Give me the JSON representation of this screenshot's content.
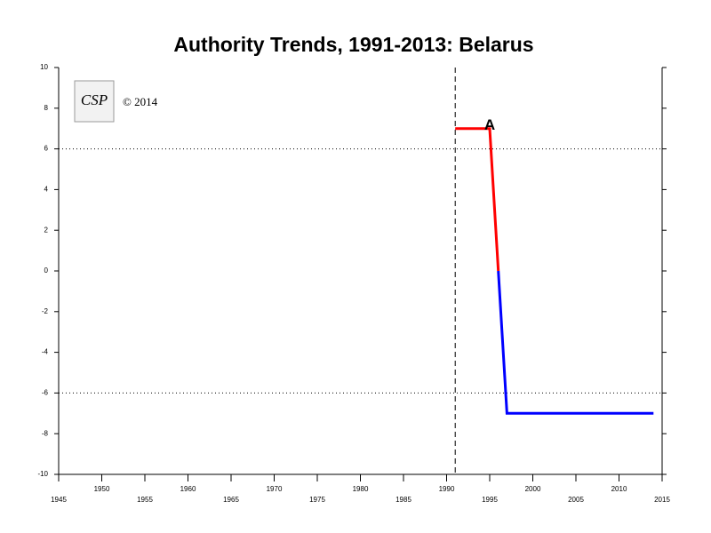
{
  "chart_data": {
    "type": "line",
    "title": "Authority Trends, 1991-2013: Belarus",
    "logo_text": "CSP",
    "copyright": "© 2014",
    "annotation": {
      "text": "A",
      "x": 1995,
      "y": 7
    },
    "xlim": [
      1945,
      2015
    ],
    "xticks": [
      1945,
      1950,
      1955,
      1960,
      1965,
      1970,
      1975,
      1980,
      1985,
      1990,
      1995,
      2000,
      2005,
      2010,
      2015
    ],
    "ylim": [
      -10,
      10
    ],
    "yticks": [
      -10,
      -8,
      -6,
      -4,
      -2,
      0,
      2,
      4,
      6,
      8,
      10
    ],
    "reference_lines": [
      6,
      -6
    ],
    "vline": 1991,
    "series": [
      {
        "color": "#ff0000",
        "x": [
          1991,
          1995,
          1996
        ],
        "values": [
          7,
          7,
          0
        ]
      },
      {
        "color": "#0000ff",
        "x": [
          1996,
          1997,
          2014
        ],
        "values": [
          0,
          -7,
          -7
        ]
      }
    ]
  }
}
